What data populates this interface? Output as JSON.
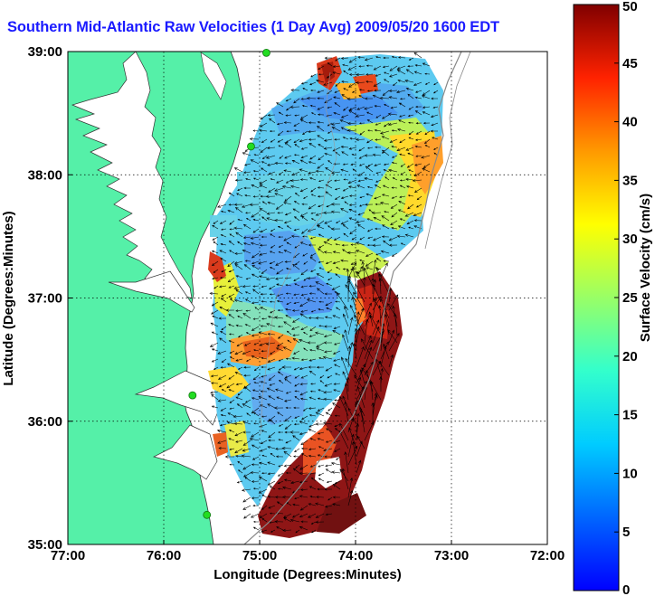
{
  "title": "Southern Mid-Atlantic Raw Velocities (1 Day Avg) 2009/05/20 1600 EDT",
  "x_axis": {
    "label": "Longitude (Degrees:Minutes)",
    "ticks": [
      "77:00",
      "76:00",
      "75:00",
      "74:00",
      "73:00",
      "72:00"
    ],
    "values": [
      -77,
      -76,
      -75,
      -74,
      -73,
      -72
    ],
    "range": [
      -77,
      -72
    ]
  },
  "y_axis": {
    "label": "Latitude (Degrees:Minutes)",
    "ticks": [
      "35:00",
      "36:00",
      "37:00",
      "38:00",
      "39:00"
    ],
    "values": [
      35,
      36,
      37,
      38,
      39
    ],
    "range": [
      35,
      39
    ]
  },
  "colorbar": {
    "label": "Surface Velocity (cm/s)",
    "ticks": [
      "0",
      "5",
      "10",
      "15",
      "20",
      "25",
      "30",
      "35",
      "40",
      "45",
      "50"
    ],
    "range": [
      0,
      50
    ],
    "colormap": "jet"
  },
  "grid": "dotted",
  "colors": {
    "land": "#55f0a8",
    "water": "#ffffff",
    "title": "#1a1aff",
    "station_marker": "#22dd22"
  },
  "stations": [
    {
      "lon": -74.93,
      "lat": 38.99
    },
    {
      "lon": -75.09,
      "lat": 38.23
    },
    {
      "lon": -75.7,
      "lat": 36.21
    },
    {
      "lon": -75.55,
      "lat": 35.24
    }
  ]
}
